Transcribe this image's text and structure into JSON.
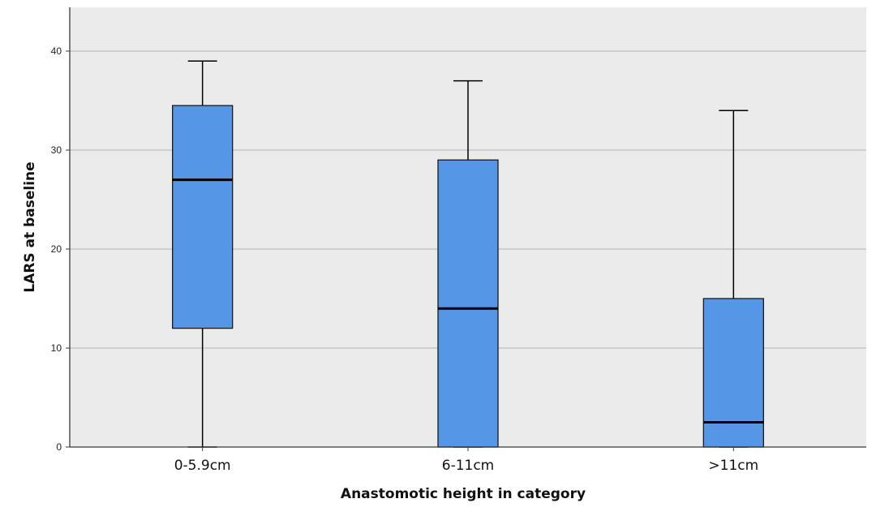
{
  "chart_data": {
    "type": "box",
    "title": "",
    "xlabel": "Anastomotic height in category",
    "ylabel": "LARS at baseline",
    "ylim": [
      0,
      44.5
    ],
    "yticks": [
      0,
      10,
      20,
      30,
      40
    ],
    "grid": true,
    "colors": {
      "box_fill": "#5596e6",
      "background": "#ebebeb"
    },
    "categories": [
      "0-5.9cm",
      "6-11cm",
      ">11cm"
    ],
    "boxes": [
      {
        "category": "0-5.9cm",
        "min": 0,
        "q1": 12,
        "median": 27,
        "q3": 34.5,
        "max": 39
      },
      {
        "category": "6-11cm",
        "min": 0,
        "q1": 0,
        "median": 14,
        "q3": 29,
        "max": 37
      },
      {
        "category": ">11cm",
        "min": 0,
        "q1": 0,
        "median": 2.5,
        "q3": 15,
        "max": 34
      }
    ]
  }
}
